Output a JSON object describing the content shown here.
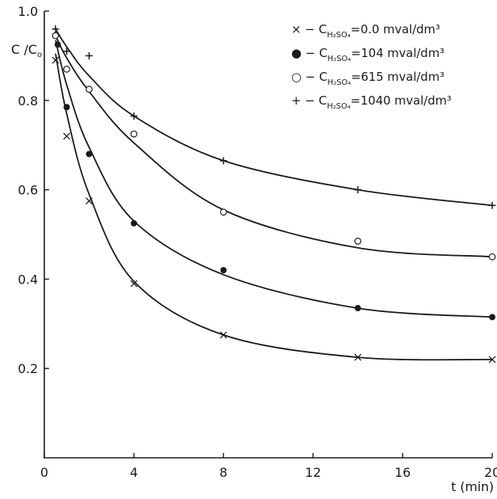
{
  "chart_data": {
    "type": "scatter",
    "ylabel": "C /C",
    "ylabel_sub": "o",
    "xlabel": "t (min)",
    "xlim": [
      0,
      20
    ],
    "ylim": [
      0,
      1.0
    ],
    "x_ticks": [
      0,
      4,
      8,
      12,
      16,
      20
    ],
    "y_ticks": [
      0.2,
      0.4,
      0.6,
      0.8,
      1.0
    ],
    "x_tick_labels": [
      "0",
      "4",
      "8",
      "12",
      "16",
      "20"
    ],
    "y_tick_labels": [
      "0.2",
      "0.4",
      "0.6",
      "0.8",
      "1.0"
    ],
    "grid": false,
    "legend_position": "top-right",
    "series": [
      {
        "marker": "cross",
        "legend": {
          "prefix": "× − C",
          "sub": "H₂SO₄",
          "suffix": "=0.0 mval/dm³"
        },
        "points": [
          [
            0.5,
            0.89
          ],
          [
            1,
            0.72
          ],
          [
            2,
            0.575
          ],
          [
            4,
            0.39
          ],
          [
            8,
            0.275
          ],
          [
            14,
            0.225
          ],
          [
            20,
            0.22
          ]
        ],
        "curve": [
          [
            0.5,
            0.905
          ],
          [
            1,
            0.77
          ],
          [
            2,
            0.59
          ],
          [
            4,
            0.395
          ],
          [
            8,
            0.275
          ],
          [
            14,
            0.225
          ],
          [
            20,
            0.22
          ]
        ]
      },
      {
        "marker": "filled-circle",
        "legend": {
          "prefix": "● − C",
          "sub": "H₂SO₄",
          "suffix": "=104 mval/dm³"
        },
        "points": [
          [
            0.6,
            0.925
          ],
          [
            1,
            0.785
          ],
          [
            2,
            0.68
          ],
          [
            4,
            0.525
          ],
          [
            8,
            0.42
          ],
          [
            14,
            0.335
          ],
          [
            20,
            0.315
          ]
        ],
        "curve": [
          [
            0.5,
            0.935
          ],
          [
            1,
            0.835
          ],
          [
            2,
            0.695
          ],
          [
            4,
            0.53
          ],
          [
            8,
            0.41
          ],
          [
            14,
            0.335
          ],
          [
            20,
            0.315
          ]
        ]
      },
      {
        "marker": "open-circle",
        "legend": {
          "prefix": "○ − C",
          "sub": "H₂SO₄",
          "suffix": "=615 mval/dm³"
        },
        "points": [
          [
            0.5,
            0.945
          ],
          [
            1,
            0.87
          ],
          [
            2,
            0.825
          ],
          [
            4,
            0.725
          ],
          [
            8,
            0.55
          ],
          [
            14,
            0.485
          ],
          [
            20,
            0.45
          ]
        ],
        "curve": [
          [
            0.5,
            0.945
          ],
          [
            1,
            0.895
          ],
          [
            2,
            0.82
          ],
          [
            4,
            0.705
          ],
          [
            8,
            0.555
          ],
          [
            14,
            0.47
          ],
          [
            20,
            0.45
          ]
        ]
      },
      {
        "marker": "plus",
        "legend": {
          "prefix": "+ − C",
          "sub": "H₂SO₄",
          "suffix": "=1040 mval/dm³"
        },
        "points": [
          [
            0.5,
            0.96
          ],
          [
            1,
            0.91
          ],
          [
            2,
            0.9
          ],
          [
            4,
            0.765
          ],
          [
            8,
            0.665
          ],
          [
            14,
            0.6
          ],
          [
            20,
            0.565
          ]
        ],
        "curve": [
          [
            0.5,
            0.96
          ],
          [
            1,
            0.92
          ],
          [
            2,
            0.855
          ],
          [
            4,
            0.765
          ],
          [
            8,
            0.665
          ],
          [
            14,
            0.6
          ],
          [
            20,
            0.565
          ]
        ]
      }
    ]
  }
}
